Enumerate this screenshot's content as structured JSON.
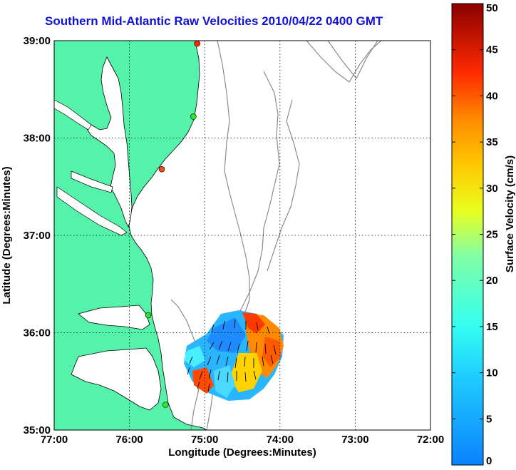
{
  "title": "Southern Mid-Atlantic Raw Velocities 2010/04/22 0400 GMT",
  "axes": {
    "xlabel": "Longitude (Degrees:Minutes)",
    "ylabel": "Latitude (Degrees:Minutes)",
    "x_ticks": [
      "77:00",
      "76:00",
      "75:00",
      "74:00",
      "73:00",
      "72:00"
    ],
    "y_ticks": [
      "39:00",
      "38:00",
      "37:00",
      "36:00",
      "35:00"
    ],
    "xlim": [
      -77,
      -72
    ],
    "ylim": [
      35,
      39
    ],
    "grid": true
  },
  "colorbar": {
    "label": "Surface Velocity (cm/s)",
    "ticks": [
      "0",
      "5",
      "10",
      "15",
      "20",
      "25",
      "30",
      "35",
      "40",
      "45",
      "50"
    ],
    "min": 0,
    "max": 50,
    "colormap": "jet"
  },
  "colors": {
    "land": "#55f2aa",
    "coast": "#000000",
    "bathymetry": "#8c8c8c",
    "title": "#1212d8"
  },
  "stations": [
    {
      "lon": -75.1,
      "lat": 38.97,
      "color": "#ff2a00"
    },
    {
      "lon": -75.15,
      "lat": 38.22,
      "color": "#2ee62e"
    },
    {
      "lon": -75.57,
      "lat": 37.68,
      "color": "#ff4a22"
    },
    {
      "lon": -75.75,
      "lat": 36.18,
      "color": "#2ee62e"
    },
    {
      "lon": -75.52,
      "lat": 35.26,
      "color": "#2ee62e"
    }
  ]
}
